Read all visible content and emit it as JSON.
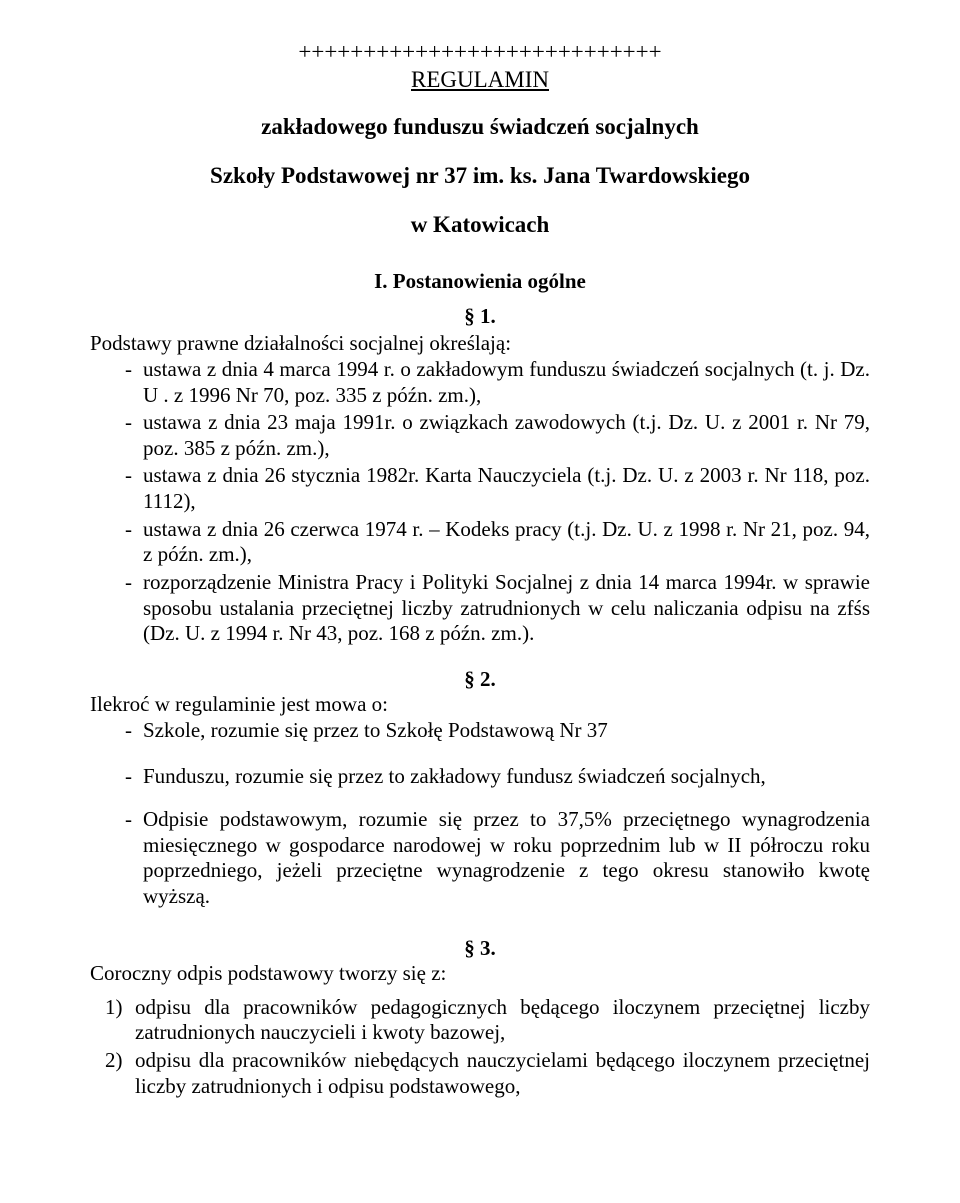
{
  "header": {
    "plus_row": "++++++++++++++++++++++++++++",
    "main_title": "REGULAMIN",
    "subtitle_line1": "zakładowego funduszu świadczeń socjalnych",
    "subtitle_line2": "Szkoły Podstawowej nr 37 im. ks. Jana Twardowskiego",
    "subtitle_line3": "w Katowicach"
  },
  "section1": {
    "heading": "I. Postanowienia ogólne",
    "para_num": "§ 1.",
    "lead_in": "Podstawy prawne działalności socjalnej określają:",
    "items": [
      "ustawa z dnia 4 marca 1994 r. o zakładowym funduszu świadczeń socjalnych (t. j. Dz. U . z 1996 Nr 70, poz. 335 z późn. zm.),",
      "ustawa z dnia 23 maja 1991r. o związkach zawodowych (t.j. Dz. U. z 2001 r. Nr 79, poz. 385 z późn. zm.),",
      "ustawa z dnia 26 stycznia 1982r. Karta Nauczyciela (t.j. Dz. U. z 2003 r. Nr 118, poz. 1112),",
      "ustawa z dnia 26 czerwca 1974 r. – Kodeks pracy (t.j. Dz. U. z 1998 r. Nr 21, poz. 94, z późn. zm.),",
      "rozporządzenie Ministra Pracy i Polityki Socjalnej z dnia 14 marca 1994r. w sprawie sposobu ustalania przeciętnej liczby zatrudnionych w celu naliczania odpisu na zfśs (Dz. U. z 1994 r. Nr  43, poz. 168 z późn. zm.)."
    ]
  },
  "section2": {
    "para_num": "§ 2.",
    "lead_in": "Ilekroć w regulaminie jest mowa o:",
    "first_item": "Szkole, rozumie się przez to Szkołę Podstawową Nr 37",
    "rest_items": [
      "Funduszu, rozumie się przez to zakładowy fundusz świadczeń socjalnych,",
      "Odpisie podstawowym, rozumie się przez to 37,5% przeciętnego wynagrodzenia miesięcznego w gospodarce narodowej w roku poprzednim lub w II półroczu roku poprzedniego, jeżeli przeciętne wynagrodzenie z tego okresu stanowiło kwotę wyższą."
    ]
  },
  "section3": {
    "para_num": "§ 3.",
    "lead_in": "Coroczny odpis podstawowy tworzy się z:",
    "items": [
      "odpisu dla pracowników pedagogicznych będącego iloczynem przeciętnej liczby zatrudnionych nauczycieli i kwoty bazowej,",
      "odpisu dla pracowników niebędących nauczycielami będącego iloczynem przeciętnej liczby zatrudnionych i odpisu podstawowego,"
    ]
  }
}
